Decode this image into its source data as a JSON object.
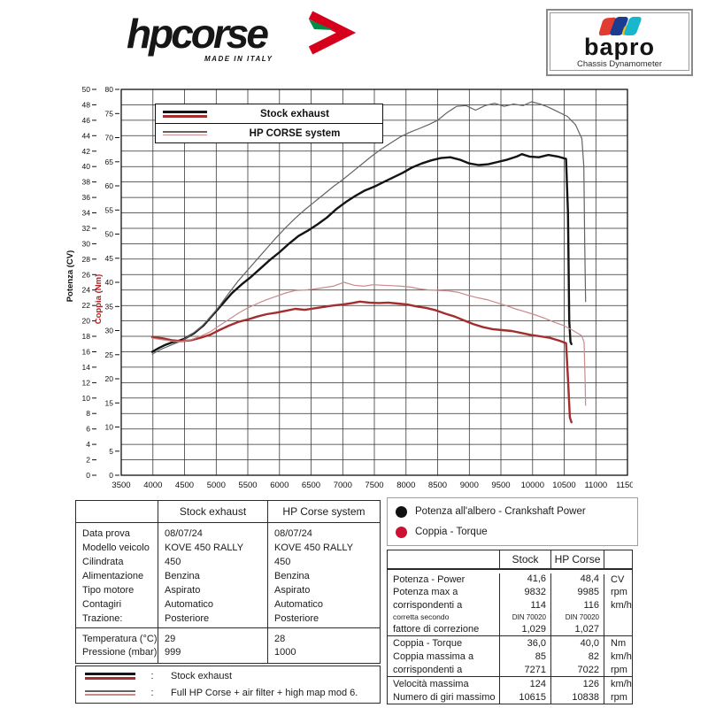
{
  "header": {
    "hpcorse": {
      "text": "hpcorse",
      "tagline": "MADE IN ITALY",
      "arrow_red": "#d6001c",
      "arrow_green": "#008c45"
    },
    "bapro": {
      "text": "bapro",
      "tagline": "Chassis Dynamometer",
      "colors": {
        "red": "#e03c31",
        "blue": "#1b3d91",
        "yellow": "#efc319",
        "teal": "#18b7cd"
      }
    }
  },
  "chart_data": {
    "type": "line",
    "x_axis": {
      "unit": "rpm",
      "min": 3500,
      "max": 11500,
      "tick_step": 500,
      "grid_step": 500
    },
    "y_axis_power": {
      "title": "Potenza (CV)",
      "min": 0,
      "max": 50,
      "label_step": 2,
      "grid_step": 2,
      "color": "#111111"
    },
    "y_axis_torque": {
      "title": "Coppia (Nm)",
      "min": 0,
      "max": 80,
      "label_step": 5,
      "color": "#b22222"
    },
    "grid": true,
    "legend_position": "top-left",
    "series": [
      {
        "name": "Stock exhaust - power",
        "axis": "power",
        "color": "#141414",
        "width": 2.4,
        "points": [
          [
            3990,
            16.0
          ],
          [
            4100,
            16.5
          ],
          [
            4200,
            16.9
          ],
          [
            4300,
            17.2
          ],
          [
            4400,
            17.4
          ],
          [
            4500,
            17.7
          ],
          [
            4650,
            18.4
          ],
          [
            4800,
            19.4
          ],
          [
            4950,
            20.8
          ],
          [
            5100,
            22.2
          ],
          [
            5250,
            23.6
          ],
          [
            5400,
            24.7
          ],
          [
            5550,
            25.7
          ],
          [
            5700,
            26.8
          ],
          [
            5850,
            27.9
          ],
          [
            6000,
            28.9
          ],
          [
            6150,
            30.0
          ],
          [
            6300,
            31.0
          ],
          [
            6450,
            31.7
          ],
          [
            6600,
            32.5
          ],
          [
            6750,
            33.4
          ],
          [
            6900,
            34.5
          ],
          [
            7050,
            35.4
          ],
          [
            7200,
            36.2
          ],
          [
            7350,
            36.9
          ],
          [
            7500,
            37.4
          ],
          [
            7650,
            38.0
          ],
          [
            7800,
            38.6
          ],
          [
            7950,
            39.2
          ],
          [
            8100,
            39.9
          ],
          [
            8250,
            40.4
          ],
          [
            8400,
            40.8
          ],
          [
            8550,
            41.1
          ],
          [
            8700,
            41.2
          ],
          [
            8850,
            40.9
          ],
          [
            9000,
            40.4
          ],
          [
            9150,
            40.2
          ],
          [
            9300,
            40.3
          ],
          [
            9450,
            40.6
          ],
          [
            9600,
            40.9
          ],
          [
            9750,
            41.3
          ],
          [
            9832,
            41.6
          ],
          [
            9950,
            41.3
          ],
          [
            10100,
            41.2
          ],
          [
            10250,
            41.5
          ],
          [
            10400,
            41.3
          ],
          [
            10530,
            41.0
          ],
          [
            10560,
            34.0
          ],
          [
            10580,
            20.0
          ],
          [
            10600,
            17.3
          ],
          [
            10615,
            17.0
          ]
        ]
      },
      {
        "name": "HP CORSE system - power",
        "axis": "power",
        "color": "#636363",
        "width": 1.2,
        "points": [
          [
            3990,
            15.7
          ],
          [
            4150,
            16.4
          ],
          [
            4300,
            16.9
          ],
          [
            4450,
            17.4
          ],
          [
            4600,
            18.2
          ],
          [
            4750,
            19.1
          ],
          [
            4900,
            20.4
          ],
          [
            5050,
            21.9
          ],
          [
            5200,
            23.6
          ],
          [
            5350,
            25.2
          ],
          [
            5500,
            26.6
          ],
          [
            5650,
            28.0
          ],
          [
            5800,
            29.4
          ],
          [
            5950,
            30.8
          ],
          [
            6100,
            32.1
          ],
          [
            6250,
            33.3
          ],
          [
            6400,
            34.4
          ],
          [
            6550,
            35.4
          ],
          [
            6700,
            36.4
          ],
          [
            6850,
            37.4
          ],
          [
            7000,
            38.3
          ],
          [
            7150,
            39.3
          ],
          [
            7300,
            40.3
          ],
          [
            7450,
            41.3
          ],
          [
            7600,
            42.2
          ],
          [
            7750,
            43.0
          ],
          [
            7900,
            43.8
          ],
          [
            8050,
            44.4
          ],
          [
            8200,
            44.9
          ],
          [
            8350,
            45.4
          ],
          [
            8500,
            46.0
          ],
          [
            8650,
            47.0
          ],
          [
            8800,
            47.8
          ],
          [
            8950,
            47.9
          ],
          [
            9100,
            47.3
          ],
          [
            9250,
            47.9
          ],
          [
            9400,
            48.2
          ],
          [
            9550,
            47.8
          ],
          [
            9700,
            48.1
          ],
          [
            9850,
            47.9
          ],
          [
            9985,
            48.4
          ],
          [
            10120,
            48.1
          ],
          [
            10250,
            47.7
          ],
          [
            10400,
            47.1
          ],
          [
            10550,
            46.5
          ],
          [
            10680,
            45.4
          ],
          [
            10780,
            43.6
          ],
          [
            10810,
            40.0
          ],
          [
            10825,
            30.0
          ],
          [
            10838,
            22.5
          ]
        ]
      },
      {
        "name": "Stock exhaust - torque",
        "axis": "torque",
        "color": "#a32e2e",
        "width": 2.4,
        "points": [
          [
            3990,
            28.6
          ],
          [
            4150,
            28.4
          ],
          [
            4300,
            28.0
          ],
          [
            4450,
            27.8
          ],
          [
            4600,
            28.0
          ],
          [
            4750,
            28.5
          ],
          [
            4900,
            29.1
          ],
          [
            5050,
            30.1
          ],
          [
            5200,
            31.0
          ],
          [
            5350,
            31.8
          ],
          [
            5500,
            32.3
          ],
          [
            5650,
            32.9
          ],
          [
            5800,
            33.4
          ],
          [
            5950,
            33.7
          ],
          [
            6100,
            34.1
          ],
          [
            6250,
            34.5
          ],
          [
            6400,
            34.3
          ],
          [
            6550,
            34.6
          ],
          [
            6700,
            34.9
          ],
          [
            6850,
            35.2
          ],
          [
            7000,
            35.4
          ],
          [
            7150,
            35.7
          ],
          [
            7271,
            36.0
          ],
          [
            7420,
            35.8
          ],
          [
            7570,
            35.7
          ],
          [
            7720,
            35.8
          ],
          [
            7870,
            35.6
          ],
          [
            8020,
            35.4
          ],
          [
            8170,
            35.0
          ],
          [
            8320,
            34.7
          ],
          [
            8470,
            34.2
          ],
          [
            8620,
            33.5
          ],
          [
            8770,
            32.9
          ],
          [
            8920,
            32.1
          ],
          [
            9070,
            31.3
          ],
          [
            9220,
            30.7
          ],
          [
            9370,
            30.3
          ],
          [
            9520,
            30.1
          ],
          [
            9670,
            29.9
          ],
          [
            9820,
            29.5
          ],
          [
            9970,
            29.1
          ],
          [
            10120,
            28.8
          ],
          [
            10270,
            28.5
          ],
          [
            10420,
            27.9
          ],
          [
            10530,
            27.4
          ],
          [
            10560,
            20.0
          ],
          [
            10590,
            12.0
          ],
          [
            10615,
            11.0
          ]
        ]
      },
      {
        "name": "HP CORSE system - torque",
        "axis": "torque",
        "color": "#c98a8a",
        "width": 1.2,
        "points": [
          [
            3990,
            28.4
          ],
          [
            4150,
            28.1
          ],
          [
            4300,
            27.8
          ],
          [
            4450,
            27.7
          ],
          [
            4600,
            28.1
          ],
          [
            4750,
            28.8
          ],
          [
            4900,
            29.7
          ],
          [
            5050,
            31.0
          ],
          [
            5200,
            32.3
          ],
          [
            5350,
            33.6
          ],
          [
            5500,
            34.7
          ],
          [
            5650,
            35.6
          ],
          [
            5800,
            36.4
          ],
          [
            5950,
            37.1
          ],
          [
            6100,
            37.8
          ],
          [
            6250,
            38.3
          ],
          [
            6400,
            38.4
          ],
          [
            6550,
            38.6
          ],
          [
            6700,
            38.9
          ],
          [
            6850,
            39.2
          ],
          [
            7022,
            40.0
          ],
          [
            7180,
            39.4
          ],
          [
            7330,
            39.2
          ],
          [
            7480,
            39.5
          ],
          [
            7630,
            39.4
          ],
          [
            7780,
            39.3
          ],
          [
            7930,
            39.2
          ],
          [
            8080,
            39.0
          ],
          [
            8230,
            38.6
          ],
          [
            8380,
            38.4
          ],
          [
            8530,
            38.3
          ],
          [
            8680,
            38.2
          ],
          [
            8830,
            37.9
          ],
          [
            8980,
            37.3
          ],
          [
            9130,
            36.8
          ],
          [
            9280,
            36.4
          ],
          [
            9430,
            35.8
          ],
          [
            9580,
            35.2
          ],
          [
            9730,
            34.5
          ],
          [
            9880,
            33.9
          ],
          [
            10030,
            33.3
          ],
          [
            10180,
            32.6
          ],
          [
            10330,
            31.8
          ],
          [
            10480,
            31.1
          ],
          [
            10630,
            30.1
          ],
          [
            10780,
            28.9
          ],
          [
            10815,
            27.5
          ],
          [
            10830,
            20.0
          ],
          [
            10838,
            14.5
          ]
        ]
      }
    ]
  },
  "chart_legend": {
    "stock_label": "Stock exhaust",
    "hpcorse_label": "HP CORSE system"
  },
  "spec_table": {
    "headers": [
      "",
      "Stock exhaust",
      "HP Corse system"
    ],
    "rows": [
      {
        "label": "Data prova",
        "stock": "08/07/24",
        "hpcorse": "08/07/24"
      },
      {
        "label": "Modello veicolo",
        "stock": "KOVE 450 RALLY",
        "hpcorse": "KOVE 450 RALLY"
      },
      {
        "label": "Cilindrata",
        "stock": "450",
        "hpcorse": "450"
      },
      {
        "label": "Alimentazione",
        "stock": "Benzina",
        "hpcorse": "Benzina"
      },
      {
        "label": "Tipo motore",
        "stock": "Aspirato",
        "hpcorse": "Aspirato"
      },
      {
        "label": "Contagiri",
        "stock": "Automatico",
        "hpcorse": "Automatico"
      },
      {
        "label": "Trazione:",
        "stock": "Posteriore",
        "hpcorse": "Posteriore"
      }
    ],
    "env_rows": [
      {
        "label": "Temperatura (°C)",
        "stock": "29",
        "hpcorse": "28"
      },
      {
        "label": "Pressione (mbar)",
        "stock": "999",
        "hpcorse": "1000"
      }
    ]
  },
  "bottom_legend": {
    "separator": ":",
    "rows": [
      {
        "label": "Stock exhaust"
      },
      {
        "label": "Full HP Corse + air filter + high map mod 6."
      }
    ]
  },
  "curve_legend": [
    {
      "label": "Potenza all'albero - Crankshaft Power",
      "color": "#111111"
    },
    {
      "label": "Coppia - Torque",
      "color": "#cc1133"
    }
  ],
  "results_table": {
    "headers": [
      "",
      "Stock",
      "HP Corse",
      ""
    ],
    "rows": [
      {
        "label": "Potenza - Power",
        "stock": "41,6",
        "hpcorse": "48,4",
        "unit": "CV"
      },
      {
        "label": "Potenza max a",
        "stock": "9832",
        "hpcorse": "9985",
        "unit": "rpm"
      },
      {
        "label": "corrispondenti a",
        "stock": "114",
        "hpcorse": "116",
        "unit": "km/h"
      },
      {
        "label": "corretta secondo",
        "stock": "DIN 70020",
        "hpcorse": "DIN 70020",
        "unit": ""
      },
      {
        "label": "fattore di correzione",
        "stock": "1,029",
        "hpcorse": "1,027",
        "unit": ""
      },
      {
        "label": "Coppia  - Torque",
        "stock": "36,0",
        "hpcorse": "40,0",
        "unit": "Nm"
      },
      {
        "label": "Coppia massima a",
        "stock": "85",
        "hpcorse": "82",
        "unit": "km/h"
      },
      {
        "label": "corrispondenti a",
        "stock": "7271",
        "hpcorse": "7022",
        "unit": "rpm"
      },
      {
        "label": "Velocità massima",
        "stock": "124",
        "hpcorse": "126",
        "unit": "km/h"
      },
      {
        "label": "Numero di giri massimo",
        "stock": "10615",
        "hpcorse": "10838",
        "unit": "rpm"
      }
    ]
  }
}
